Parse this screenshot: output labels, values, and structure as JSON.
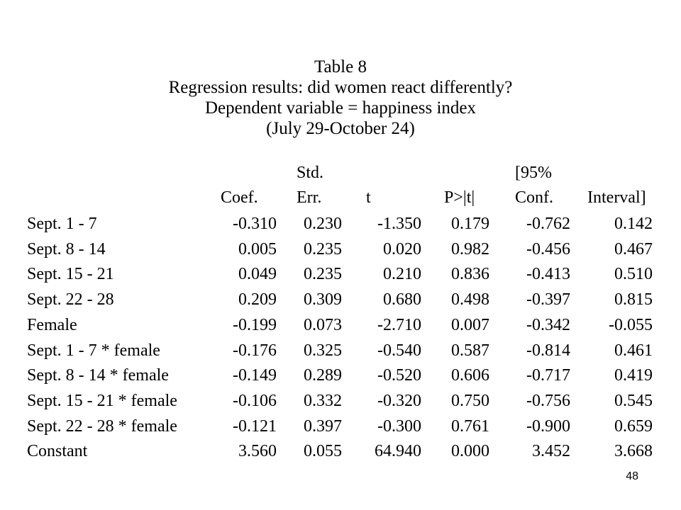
{
  "title": {
    "line1": "Table 8",
    "line2": "Regression results: did women react differently?",
    "line3": "Dependent variable = happiness index",
    "line4": "(July 29-October 24)"
  },
  "header": {
    "coef_top": "",
    "coef": "Coef.",
    "stderr_top": "Std.",
    "stderr": "Err.",
    "t": "t",
    "p": "P>|t|",
    "ci_low_top": "[95%",
    "ci_low": "Conf.",
    "ci_high": "Interval]"
  },
  "rows": [
    {
      "label": "Sept. 1 - 7",
      "coef": "-0.310",
      "se": "0.230",
      "t": "-1.350",
      "p": "0.179",
      "lo": "-0.762",
      "hi": "0.142"
    },
    {
      "label": "Sept. 8 - 14",
      "coef": "0.005",
      "se": "0.235",
      "t": "0.020",
      "p": "0.982",
      "lo": "-0.456",
      "hi": "0.467"
    },
    {
      "label": "Sept. 15 - 21",
      "coef": "0.049",
      "se": "0.235",
      "t": "0.210",
      "p": "0.836",
      "lo": "-0.413",
      "hi": "0.510"
    },
    {
      "label": "Sept. 22 - 28",
      "coef": "0.209",
      "se": "0.309",
      "t": "0.680",
      "p": "0.498",
      "lo": "-0.397",
      "hi": "0.815"
    },
    {
      "label": "Female",
      "coef": "-0.199",
      "se": "0.073",
      "t": "-2.710",
      "p": "0.007",
      "lo": "-0.342",
      "hi": "-0.055"
    },
    {
      "label": "Sept. 1 - 7 * female",
      "coef": "-0.176",
      "se": "0.325",
      "t": "-0.540",
      "p": "0.587",
      "lo": "-0.814",
      "hi": "0.461"
    },
    {
      "label": "Sept. 8 - 14 * female",
      "coef": "-0.149",
      "se": "0.289",
      "t": "-0.520",
      "p": "0.606",
      "lo": "-0.717",
      "hi": "0.419"
    },
    {
      "label": "Sept. 15 - 21 * female",
      "coef": "-0.106",
      "se": "0.332",
      "t": "-0.320",
      "p": "0.750",
      "lo": "-0.756",
      "hi": "0.545"
    },
    {
      "label": "Sept. 22 - 28 * female",
      "coef": "-0.121",
      "se": "0.397",
      "t": "-0.300",
      "p": "0.761",
      "lo": "-0.900",
      "hi": "0.659"
    },
    {
      "label": "Constant",
      "coef": "3.560",
      "se": "0.055",
      "t": "64.940",
      "p": "0.000",
      "lo": "3.452",
      "hi": "3.668"
    }
  ],
  "page_number": "48"
}
